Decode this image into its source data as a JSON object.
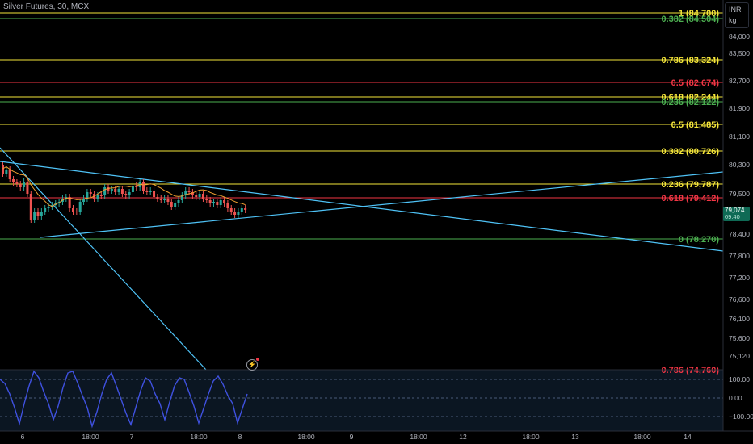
{
  "header": {
    "title": "Silver Futures, 30, MCX"
  },
  "unit_selector": {
    "currency": "INR",
    "unit": "kg"
  },
  "current_price": {
    "value": "79,074",
    "timer": "09:40"
  },
  "price_axis_labels": [
    "84,000",
    "83,500",
    "82,700",
    "81,900",
    "81,100",
    "80,300",
    "79,500",
    "78,400",
    "77,800",
    "77,200",
    "76,600",
    "76,100",
    "75,600",
    "75,120"
  ],
  "time_axis_labels": [
    "6",
    "18:00",
    "7",
    "18:00",
    "8",
    "18:00",
    "9",
    "18:00",
    "12",
    "18:00",
    "13",
    "18:00",
    "14"
  ],
  "fib_levels": [
    {
      "label": "1 (84,700)",
      "color": "#f5e63a"
    },
    {
      "label": "0.382 (84,504)",
      "color": "#4caf50"
    },
    {
      "label": "0.786 (83,324)",
      "color": "#f5e63a"
    },
    {
      "label": "0.5 (82,674)",
      "color": "#f23645"
    },
    {
      "label": "0.618 (82,244)",
      "color": "#f5e63a"
    },
    {
      "label": "0.236 (82,122)",
      "color": "#4caf50"
    },
    {
      "label": "0.5 (81,485)",
      "color": "#f5e63a"
    },
    {
      "label": "0.382 (80,726)",
      "color": "#f5e63a"
    },
    {
      "label": "0.236 (79,787)",
      "color": "#f5e63a"
    },
    {
      "label": "0.618 (79,412)",
      "color": "#f23645"
    },
    {
      "label": "0 (78,270)",
      "color": "#4caf50"
    },
    {
      "label": "0.786 (74,760)",
      "color": "#f23645"
    }
  ],
  "oscillator": {
    "axis_labels": [
      "100.00",
      "0.00",
      "−100.00"
    ]
  },
  "colors": {
    "up": "#26a69a",
    "down": "#ef5350",
    "trendline": "#4fc3f7",
    "oscillator": "#3f51e0"
  }
}
